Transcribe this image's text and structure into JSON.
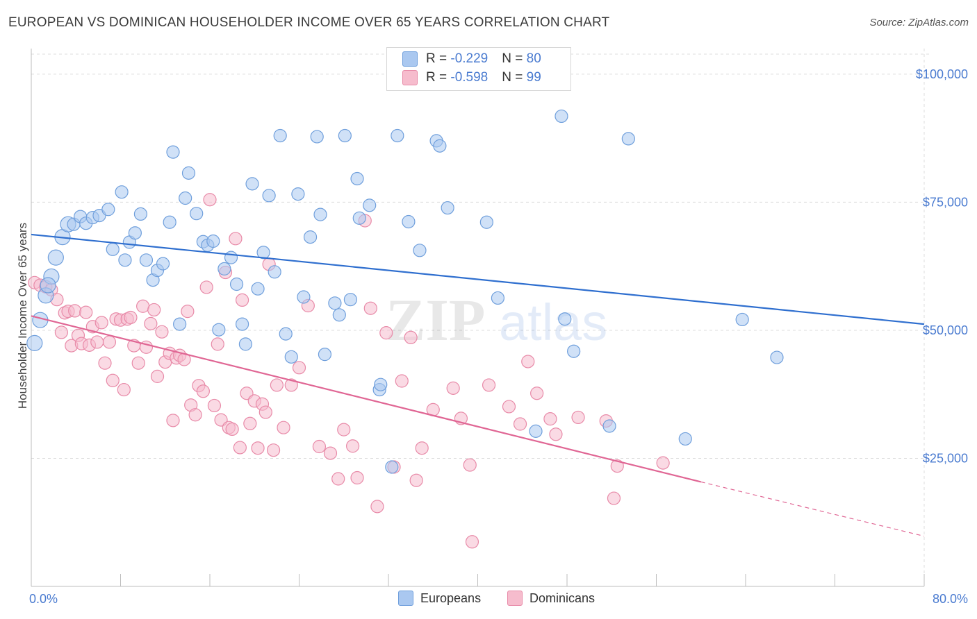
{
  "header": {
    "title": "EUROPEAN VS DOMINICAN HOUSEHOLDER INCOME OVER 65 YEARS CORRELATION CHART",
    "source": "Source: ZipAtlas.com"
  },
  "legend_top": [
    {
      "r_label": "R = ",
      "r_value": "-0.229",
      "n_label": "N = ",
      "n_value": "80"
    },
    {
      "r_label": "R = ",
      "r_value": "-0.598",
      "n_label": "N = ",
      "n_value": "99"
    }
  ],
  "legend_bottom": [
    "Europeans",
    "Dominicans"
  ],
  "colors": {
    "europeans_fill": "#aac8f0",
    "europeans_stroke": "#6f9fdc",
    "europeans_line": "#2f6fcf",
    "dominicans_fill": "#f6bccd",
    "dominicans_stroke": "#e88aa8",
    "dominicans_line": "#e06694",
    "tick_label": "#4a7bd0"
  },
  "chart_data": {
    "type": "scatter",
    "title": "EUROPEAN VS DOMINICAN HOUSEHOLDER INCOME OVER 65 YEARS CORRELATION CHART",
    "xlabel": "",
    "ylabel": "Householder Income Over 65 years",
    "xlim": [
      0,
      80
    ],
    "ylim": [
      0,
      105000
    ],
    "x_tick_labels": [
      "0.0%",
      "80.0%"
    ],
    "y_ticks": [
      25000,
      50000,
      75000,
      100000
    ],
    "y_tick_labels": [
      "$25,000",
      "$50,000",
      "$75,000",
      "$100,000"
    ],
    "grid": true,
    "legend_position": "top-center",
    "watermark": "ZIPatlas",
    "series": [
      {
        "name": "Europeans",
        "r": -0.229,
        "n": 80,
        "trend": {
          "x0": 0,
          "y0": 68700,
          "x1": 80,
          "y1": 51200
        },
        "points": [
          [
            0.3,
            47500
          ],
          [
            0.8,
            52000
          ],
          [
            1.3,
            56800
          ],
          [
            1.8,
            60500
          ],
          [
            2.2,
            64200
          ],
          [
            2.8,
            68200
          ],
          [
            3.3,
            70700
          ],
          [
            3.8,
            70700
          ],
          [
            4.4,
            72200
          ],
          [
            4.9,
            70900
          ],
          [
            5.5,
            72000
          ],
          [
            6.1,
            72400
          ],
          [
            6.9,
            73600
          ],
          [
            7.3,
            65800
          ],
          [
            8.1,
            77000
          ],
          [
            8.4,
            63700
          ],
          [
            8.8,
            67200
          ],
          [
            9.3,
            69000
          ],
          [
            9.8,
            72700
          ],
          [
            10.3,
            63700
          ],
          [
            10.9,
            59800
          ],
          [
            11.3,
            61700
          ],
          [
            11.8,
            63000
          ],
          [
            12.4,
            71100
          ],
          [
            12.7,
            84800
          ],
          [
            13.3,
            51200
          ],
          [
            13.8,
            75800
          ],
          [
            14.1,
            80700
          ],
          [
            14.8,
            72800
          ],
          [
            15.4,
            67300
          ],
          [
            15.8,
            66600
          ],
          [
            16.3,
            67400
          ],
          [
            16.8,
            50100
          ],
          [
            17.3,
            62000
          ],
          [
            17.9,
            64200
          ],
          [
            18.4,
            59000
          ],
          [
            18.9,
            51200
          ],
          [
            19.2,
            47300
          ],
          [
            19.8,
            78600
          ],
          [
            20.3,
            58100
          ],
          [
            20.8,
            65200
          ],
          [
            21.3,
            76300
          ],
          [
            21.8,
            61400
          ],
          [
            22.3,
            88000
          ],
          [
            22.8,
            49300
          ],
          [
            23.3,
            44800
          ],
          [
            23.9,
            76600
          ],
          [
            24.4,
            56500
          ],
          [
            25.0,
            68200
          ],
          [
            25.6,
            87800
          ],
          [
            25.9,
            72600
          ],
          [
            26.3,
            45300
          ],
          [
            27.2,
            55300
          ],
          [
            27.6,
            53000
          ],
          [
            28.1,
            88000
          ],
          [
            28.6,
            56000
          ],
          [
            29.2,
            79600
          ],
          [
            29.4,
            71900
          ],
          [
            30.3,
            74400
          ],
          [
            31.2,
            38400
          ],
          [
            31.3,
            39400
          ],
          [
            32.3,
            23300
          ],
          [
            32.8,
            88000
          ],
          [
            33.8,
            71200
          ],
          [
            34.8,
            65600
          ],
          [
            36.3,
            87000
          ],
          [
            36.6,
            86000
          ],
          [
            37.3,
            73900
          ],
          [
            40.8,
            71100
          ],
          [
            41.8,
            56300
          ],
          [
            45.2,
            30300
          ],
          [
            47.5,
            91800
          ],
          [
            47.8,
            52200
          ],
          [
            48.6,
            45900
          ],
          [
            51.8,
            31300
          ],
          [
            53.5,
            87400
          ],
          [
            58.6,
            28800
          ],
          [
            63.7,
            52100
          ],
          [
            66.8,
            44700
          ],
          [
            1.5,
            58800
          ]
        ]
      },
      {
        "name": "Dominicans",
        "r": -0.598,
        "n": 99,
        "trend": {
          "x0": 0,
          "y0": 52800,
          "x1": 60,
          "y1": 20400,
          "dash_x1": 80,
          "dash_y1": 9800
        },
        "points": [
          [
            0.3,
            59300
          ],
          [
            0.8,
            58800
          ],
          [
            1.3,
            58500
          ],
          [
            1.8,
            57900
          ],
          [
            2.3,
            56000
          ],
          [
            2.7,
            49600
          ],
          [
            3.0,
            53400
          ],
          [
            3.3,
            53700
          ],
          [
            3.6,
            47000
          ],
          [
            3.9,
            53800
          ],
          [
            4.2,
            49000
          ],
          [
            4.5,
            47400
          ],
          [
            4.9,
            53500
          ],
          [
            5.2,
            47100
          ],
          [
            5.5,
            50700
          ],
          [
            5.9,
            47700
          ],
          [
            6.3,
            51500
          ],
          [
            6.6,
            43600
          ],
          [
            7.0,
            47700
          ],
          [
            7.3,
            40200
          ],
          [
            7.6,
            52200
          ],
          [
            8.0,
            52000
          ],
          [
            8.3,
            38400
          ],
          [
            8.6,
            52200
          ],
          [
            8.9,
            52500
          ],
          [
            9.2,
            47000
          ],
          [
            9.6,
            43600
          ],
          [
            10.0,
            54700
          ],
          [
            10.3,
            46700
          ],
          [
            10.7,
            51300
          ],
          [
            11.0,
            54000
          ],
          [
            11.3,
            41000
          ],
          [
            11.7,
            49700
          ],
          [
            12.0,
            43800
          ],
          [
            12.4,
            45500
          ],
          [
            12.7,
            32400
          ],
          [
            13.0,
            44600
          ],
          [
            13.3,
            45100
          ],
          [
            13.7,
            44300
          ],
          [
            14.0,
            53700
          ],
          [
            14.3,
            35400
          ],
          [
            14.7,
            33500
          ],
          [
            15.0,
            39200
          ],
          [
            15.4,
            38100
          ],
          [
            15.7,
            58400
          ],
          [
            16.0,
            75500
          ],
          [
            16.4,
            35300
          ],
          [
            16.7,
            47300
          ],
          [
            17.0,
            32500
          ],
          [
            17.4,
            61300
          ],
          [
            17.7,
            31000
          ],
          [
            18.0,
            30700
          ],
          [
            18.3,
            67900
          ],
          [
            18.7,
            27100
          ],
          [
            18.9,
            55900
          ],
          [
            19.3,
            37700
          ],
          [
            19.6,
            31800
          ],
          [
            20.0,
            36200
          ],
          [
            20.3,
            27000
          ],
          [
            20.7,
            35600
          ],
          [
            21.0,
            34000
          ],
          [
            21.3,
            62900
          ],
          [
            21.7,
            26600
          ],
          [
            22.0,
            39300
          ],
          [
            22.6,
            31000
          ],
          [
            23.3,
            39300
          ],
          [
            24.0,
            42700
          ],
          [
            24.8,
            54800
          ],
          [
            25.8,
            27300
          ],
          [
            26.8,
            26000
          ],
          [
            27.5,
            21000
          ],
          [
            28.0,
            30600
          ],
          [
            28.8,
            27400
          ],
          [
            29.2,
            21200
          ],
          [
            29.9,
            71400
          ],
          [
            30.4,
            54300
          ],
          [
            31.0,
            15600
          ],
          [
            31.8,
            49500
          ],
          [
            32.5,
            23300
          ],
          [
            33.2,
            40100
          ],
          [
            34.0,
            48600
          ],
          [
            34.5,
            20700
          ],
          [
            35.0,
            27000
          ],
          [
            36.0,
            34500
          ],
          [
            37.8,
            38700
          ],
          [
            38.5,
            32800
          ],
          [
            39.3,
            23700
          ],
          [
            39.5,
            8700
          ],
          [
            41.0,
            39300
          ],
          [
            42.8,
            35100
          ],
          [
            43.8,
            31700
          ],
          [
            44.5,
            43900
          ],
          [
            45.3,
            37700
          ],
          [
            46.5,
            32700
          ],
          [
            47.0,
            29700
          ],
          [
            49.0,
            33000
          ],
          [
            51.5,
            32300
          ],
          [
            52.2,
            17200
          ],
          [
            52.5,
            23500
          ],
          [
            56.6,
            24100
          ]
        ]
      }
    ]
  }
}
